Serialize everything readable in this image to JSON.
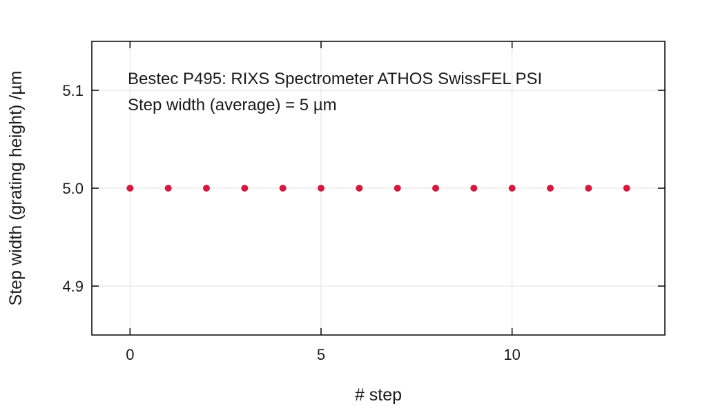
{
  "chart_data": {
    "type": "scatter",
    "title": "",
    "xlabel": "# step",
    "ylabel": "Step width (grating height) /µm",
    "annotations": [
      "Bestec P495: RIXS Spectrometer ATHOS SwissFEL PSI",
      "Step width (average) = 5 µm"
    ],
    "xlim": [
      -1,
      14
    ],
    "ylim": [
      4.85,
      5.15
    ],
    "x_ticks": [
      0,
      5,
      10
    ],
    "x_tick_labels": [
      "0",
      "5",
      "10"
    ],
    "y_ticks": [
      4.9,
      5.0,
      5.1
    ],
    "y_tick_labels": [
      "4.9",
      "5.0",
      "5.1"
    ],
    "grid": true,
    "colors": {
      "marker": "#d6173e",
      "grid": "#e2e2e2",
      "axis": "#000000"
    },
    "series": [
      {
        "x": [
          0,
          1,
          2,
          3,
          4,
          5,
          6,
          7,
          8,
          9,
          10,
          11,
          12,
          13
        ],
        "values": [
          5.0,
          5.0,
          5.0,
          5.0,
          5.0,
          5.0,
          5.0,
          5.0,
          5.0,
          5.0,
          5.0,
          5.0,
          5.0,
          5.0
        ]
      }
    ]
  }
}
